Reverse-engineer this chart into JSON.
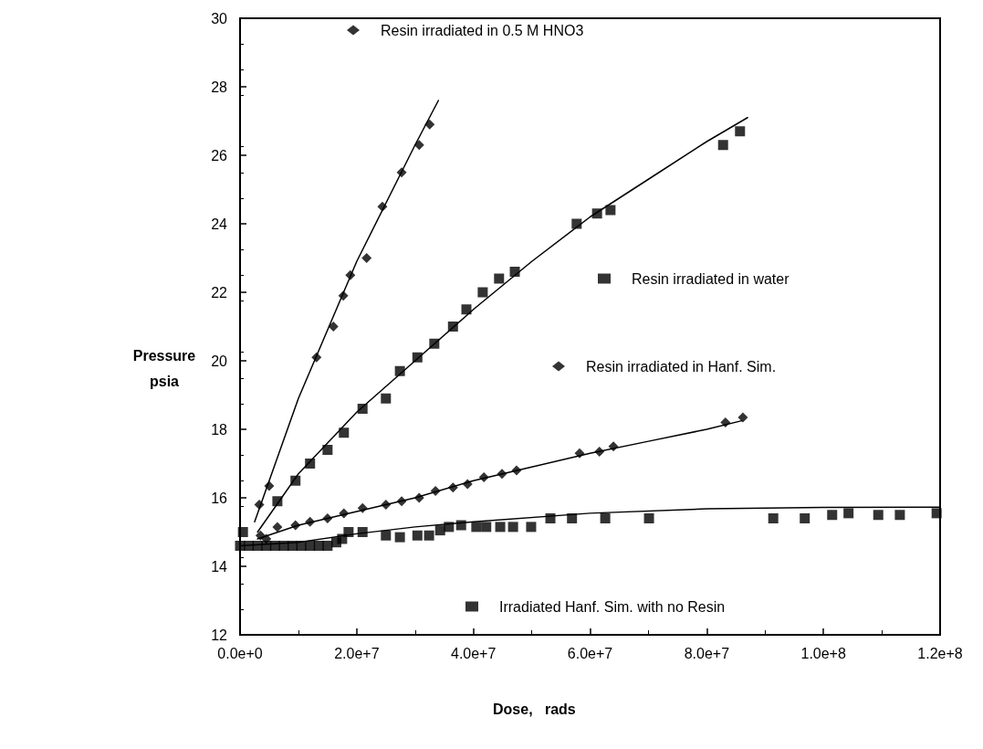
{
  "chart_data": {
    "type": "scatter",
    "xlabel": "Dose,   rads",
    "ylabel": "Pressure\npsia",
    "xlim": [
      0,
      120000000
    ],
    "ylim": [
      12,
      30
    ],
    "xticks": [
      {
        "value": 0,
        "label": "0.0e+0"
      },
      {
        "value": 20000000,
        "label": "2.0e+7"
      },
      {
        "value": 40000000,
        "label": "4.0e+7"
      },
      {
        "value": 60000000,
        "label": "6.0e+7"
      },
      {
        "value": 80000000,
        "label": "8.0e+7"
      },
      {
        "value": 100000000,
        "label": "1.0e+8"
      },
      {
        "value": 120000000,
        "label": "1.2e+8"
      }
    ],
    "yticks": [
      12,
      14,
      16,
      18,
      20,
      22,
      24,
      26,
      28,
      30
    ],
    "grid": false,
    "legend": "top right",
    "series": [
      {
        "name": "Resin irradiated in 0.5 M HNO3",
        "color": "#000000",
        "marker": "diamond",
        "x": [
          3300000,
          5000000,
          13100000,
          16000000,
          17700000,
          18900000,
          21700000,
          24400000,
          27700000,
          30700000,
          32500000
        ],
        "values": [
          15.8,
          16.35,
          20.1,
          21.0,
          21.9,
          22.5,
          23.0,
          24.5,
          25.5,
          26.3,
          26.9
        ]
      },
      {
        "name": "Resin irradiated in water",
        "color": "#000000",
        "marker": "square",
        "x": [
          500000,
          6400000,
          9500000,
          12000000,
          15000000,
          17800000,
          21000000,
          25000000,
          27400000,
          30400000,
          33300000,
          36500000,
          38800000,
          41600000,
          44400000,
          47100000,
          57700000,
          61200000,
          63500000,
          82800000,
          85700000
        ],
        "values": [
          15.0,
          15.9,
          16.5,
          17.0,
          17.4,
          17.9,
          18.6,
          18.9,
          19.7,
          20.1,
          20.5,
          21.0,
          21.5,
          22.0,
          22.4,
          22.6,
          24.0,
          24.3,
          24.4,
          26.3,
          26.7
        ]
      },
      {
        "name": "Resin irradiated in Hanf. Sim.",
        "color": "#000000",
        "marker": "diamond",
        "x": [
          3500000,
          4500000,
          6400000,
          9500000,
          12000000,
          15000000,
          17800000,
          21000000,
          25000000,
          27700000,
          30700000,
          33500000,
          36500000,
          39000000,
          41800000,
          44900000,
          47400000,
          58200000,
          61600000,
          64000000,
          83200000,
          86200000
        ],
        "values": [
          14.9,
          14.8,
          15.15,
          15.2,
          15.3,
          15.4,
          15.55,
          15.7,
          15.8,
          15.9,
          16.0,
          16.2,
          16.3,
          16.4,
          16.6,
          16.7,
          16.8,
          17.3,
          17.35,
          17.5,
          18.2,
          18.35
        ]
      },
      {
        "name": "Irradiated Hanf. Sim. with no Resin",
        "color": "#000000",
        "marker": "square",
        "x": [
          0,
          1500000,
          3000000,
          4500000,
          6000000,
          7500000,
          9000000,
          10500000,
          12000000,
          13500000,
          15000000,
          16500000,
          17500000,
          18600000,
          21000000,
          25000000,
          27400000,
          30400000,
          32400000,
          34300000,
          35800000,
          37900000,
          40500000,
          42200000,
          44600000,
          46800000,
          49900000,
          53200000,
          56900000,
          62600000,
          70100000,
          91400000,
          96800000,
          101500000,
          104300000,
          109400000,
          113100000,
          119400000
        ],
        "values": [
          14.6,
          14.6,
          14.6,
          14.6,
          14.6,
          14.6,
          14.6,
          14.6,
          14.6,
          14.6,
          14.6,
          14.7,
          14.8,
          15.0,
          15.0,
          14.9,
          14.85,
          14.9,
          14.9,
          15.05,
          15.15,
          15.2,
          15.15,
          15.15,
          15.15,
          15.15,
          15.15,
          15.4,
          15.4,
          15.4,
          15.4,
          15.4,
          15.4,
          15.5,
          15.55,
          15.5,
          15.5,
          15.55
        ]
      },
      {
        "type": "line",
        "color": "#000000",
        "marker": "none",
        "x": [
          2500000,
          10000000,
          20000000,
          30000000,
          34000000
        ],
        "values": [
          15.3,
          18.9,
          22.9,
          26.3,
          27.6
        ]
      },
      {
        "type": "line",
        "color": "#000000",
        "marker": "none",
        "x": [
          3000000,
          10000000,
          20000000,
          30000000,
          40000000,
          50000000,
          60000000,
          70000000,
          80000000,
          87000000
        ],
        "values": [
          15.0,
          16.7,
          18.5,
          20.0,
          21.5,
          22.9,
          24.2,
          25.3,
          26.4,
          27.1
        ]
      },
      {
        "type": "line",
        "color": "#000000",
        "marker": "none",
        "x": [
          3000000,
          10000000,
          20000000,
          30000000,
          40000000,
          50000000,
          60000000,
          70000000,
          80000000,
          86000000
        ],
        "values": [
          14.8,
          15.2,
          15.6,
          16.0,
          16.5,
          16.9,
          17.3,
          17.65,
          18.0,
          18.25
        ]
      },
      {
        "type": "line",
        "color": "#000000",
        "marker": "none",
        "x": [
          0,
          10000000,
          20000000,
          30000000,
          40000000,
          60000000,
          80000000,
          100000000,
          120000000
        ],
        "values": [
          14.6,
          14.7,
          14.95,
          15.15,
          15.3,
          15.55,
          15.68,
          15.72,
          15.73
        ]
      }
    ]
  }
}
